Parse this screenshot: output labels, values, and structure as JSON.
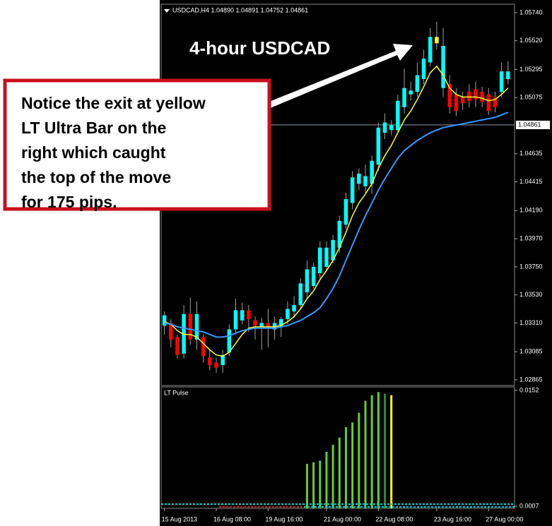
{
  "chart_data": {
    "type": "candlestick",
    "header": "USDCAD,H4  1.04890 1.04891 1.04752 1.04861",
    "annotation_title": "4-hour USDCAD",
    "annotation_box": [
      "Notice the exit at yellow",
      "LT Ultra Bar on the",
      "right which caught",
      "the top of the move",
      "for 175 pips."
    ],
    "open": [
      1.0329,
      1.0331,
      1.032,
      1.0307,
      1.0338,
      1.0318,
      1.032,
      1.0304,
      1.03,
      1.0298,
      1.0308,
      1.0326,
      1.0333,
      1.0341,
      1.0333,
      1.0328,
      1.0331,
      1.0326,
      1.0328,
      1.0334,
      1.034,
      1.0345,
      1.0355,
      1.036,
      1.037,
      1.0375,
      1.038,
      1.039,
      1.0408,
      1.0425,
      1.044,
      1.0438,
      1.044,
      1.0455,
      1.048,
      1.0482,
      1.0482,
      1.05,
      1.051,
      1.0512,
      1.0522,
      1.0535,
      1.0555,
      1.0548,
      1.0518,
      1.051,
      1.0508,
      1.0512,
      1.0514,
      1.0512,
      1.051,
      1.0508,
      1.0512,
      1.0522
    ],
    "high": [
      1.034,
      1.0334,
      1.0322,
      1.0345,
      1.0351,
      1.0348,
      1.0322,
      1.031,
      1.0304,
      1.031,
      1.033,
      1.035,
      1.0347,
      1.0345,
      1.0336,
      1.0335,
      1.0342,
      1.0336,
      1.0336,
      1.0348,
      1.0352,
      1.0366,
      1.038,
      1.0378,
      1.0395,
      1.0395,
      1.04,
      1.0415,
      1.0433,
      1.045,
      1.0452,
      1.0455,
      1.0462,
      1.0488,
      1.0495,
      1.049,
      1.051,
      1.053,
      1.052,
      1.0535,
      1.0545,
      1.0562,
      1.0567,
      1.0562,
      1.0525,
      1.0515,
      1.0512,
      1.0518,
      1.052,
      1.0516,
      1.0515,
      1.0512,
      1.0535,
      1.0536
    ],
    "low": [
      1.0322,
      1.0312,
      1.0303,
      1.0303,
      1.0314,
      1.031,
      1.03,
      1.0294,
      1.0292,
      1.0292,
      1.0305,
      1.0322,
      1.033,
      1.0324,
      1.0318,
      1.031,
      1.0312,
      1.0318,
      1.032,
      1.033,
      1.0335,
      1.0342,
      1.035,
      1.0358,
      1.0365,
      1.0372,
      1.0378,
      1.0386,
      1.0405,
      1.042,
      1.0435,
      1.0433,
      1.0432,
      1.045,
      1.0475,
      1.0478,
      1.048,
      1.0495,
      1.0505,
      1.0508,
      1.0518,
      1.0532,
      1.0545,
      1.0508,
      1.0495,
      1.0493,
      1.0498,
      1.05,
      1.05,
      1.05,
      1.0494,
      1.0496,
      1.0508,
      1.0518
    ],
    "close": [
      1.0337,
      1.0318,
      1.0306,
      1.0338,
      1.0318,
      1.0338,
      1.0305,
      1.0298,
      1.0296,
      1.0306,
      1.0326,
      1.0341,
      1.0341,
      1.0334,
      1.0329,
      1.0331,
      1.0327,
      1.0331,
      1.0334,
      1.0342,
      1.0345,
      1.0362,
      1.0373,
      1.0375,
      1.039,
      1.039,
      1.0396,
      1.0411,
      1.0428,
      1.0445,
      1.0448,
      1.0446,
      1.0458,
      1.0484,
      1.0488,
      1.0486,
      1.0505,
      1.0515,
      1.0513,
      1.0525,
      1.0538,
      1.0555,
      1.055,
      1.0515,
      1.05,
      1.0497,
      1.0503,
      1.0505,
      1.0506,
      1.0504,
      1.0497,
      1.05,
      1.0528,
      1.0528
    ],
    "candle_colors": [
      "#00ffff",
      "#ff0000",
      "#ff0000",
      "#00ffff",
      "#ff0000",
      "#00ffff",
      "#ff0000",
      "#ff0000",
      "#ff0000",
      "#00ffff",
      "#00ffff",
      "#00ffff",
      "#00ffff",
      "#ff0000",
      "#ff0000",
      "#00ffff",
      "#ff0000",
      "#00ffff",
      "#00ffff",
      "#00ffff",
      "#00ffff",
      "#00ffff",
      "#00ffff",
      "#00ffff",
      "#00ffff",
      "#00ffff",
      "#00ffff",
      "#00ffff",
      "#00ffff",
      "#00ffff",
      "#00ffff",
      "#00ffff",
      "#00ffff",
      "#00ffff",
      "#00ffff",
      "#00ffff",
      "#00ffff",
      "#00ffff",
      "#00ffff",
      "#00ffff",
      "#00ffff",
      "#00ffff",
      "#ffff00",
      "#00ffff",
      "#ff0000",
      "#ff0000",
      "#ff0000",
      "#ff0000",
      "#ff0000",
      "#ff0000",
      "#ff0000",
      "#ff0000",
      "#00ffff",
      "#00ffff"
    ],
    "series": [
      {
        "color": "#ffff33",
        "values": [
          1.0332,
          1.033,
          1.0325,
          1.0322,
          1.0322,
          1.032,
          1.0315,
          1.031,
          1.0306,
          1.0305,
          1.0308,
          1.0315,
          1.0322,
          1.0327,
          1.0328,
          1.0328,
          1.0328,
          1.0328,
          1.0329,
          1.0332,
          1.0336,
          1.0342,
          1.035,
          1.0356,
          1.0365,
          1.0372,
          1.038,
          1.039,
          1.0402,
          1.0415,
          1.0425,
          1.0432,
          1.044,
          1.0452,
          1.0462,
          1.047,
          1.048,
          1.049,
          1.0497,
          1.0506,
          1.0516,
          1.0527,
          1.0532,
          1.0525,
          1.0515,
          1.051,
          1.0508,
          1.0508,
          1.0508,
          1.0507,
          1.0505,
          1.0506,
          1.051,
          1.0515
        ]
      },
      {
        "color": "#3399ff",
        "values": [
          1.0331,
          1.033,
          1.0328,
          1.0327,
          1.0326,
          1.0325,
          1.0324,
          1.0322,
          1.032,
          1.032,
          1.0321,
          1.0323,
          1.0325,
          1.0326,
          1.0327,
          1.0327,
          1.0327,
          1.0327,
          1.0328,
          1.0329,
          1.0331,
          1.0333,
          1.0336,
          1.0339,
          1.0343,
          1.035,
          1.0358,
          1.0368,
          1.038,
          1.0392,
          1.0404,
          1.0415,
          1.0425,
          1.0435,
          1.0444,
          1.0452,
          1.046,
          1.0466,
          1.047,
          1.0474,
          1.0477,
          1.048,
          1.0482,
          1.0484,
          1.0485,
          1.0486,
          1.0487,
          1.0488,
          1.0489,
          1.049,
          1.0491,
          1.0492,
          1.0494,
          1.0496
        ]
      }
    ],
    "last_price": 1.04861,
    "xlim": [
      -0.5,
      54
    ],
    "xticks": [
      {
        "value": 0,
        "label": "15 Aug 2013"
      },
      {
        "value": 8,
        "label": "16 Aug 08:00"
      },
      {
        "value": 16,
        "label": "19 Aug 16:00"
      },
      {
        "value": 25,
        "label": "21 Aug 00:00"
      },
      {
        "value": 33,
        "label": "22 Aug 08:00"
      },
      {
        "value": 42,
        "label": "23 Aug 16:00"
      },
      {
        "value": 50,
        "label": "27 Aug 00:00"
      }
    ],
    "ylim": [
      1.02826,
      1.05795
    ],
    "yticks": [
      {
        "value": 1.0574,
        "label": "1.05740"
      },
      {
        "value": 1.0552,
        "label": "1.05520"
      },
      1.05295,
      1.05075,
      1.04635,
      1.04415,
      {
        "value": 1.0419,
        "label": "1.04190"
      },
      {
        "value": 1.0397,
        "label": "1.03970"
      },
      {
        "value": 1.0375,
        "label": "1.03750"
      },
      {
        "value": 1.0353,
        "label": "1.03530"
      },
      {
        "value": 1.0331,
        "label": "1.03310"
      },
      1.03085,
      1.02865
    ],
    "pulse_title": "LT Pulse",
    "pulse_values": [
      null,
      null,
      null,
      null,
      null,
      null,
      null,
      null,
      null,
      null,
      null,
      null,
      null,
      null,
      null,
      null,
      null,
      null,
      null,
      null,
      null,
      null,
      0.006,
      0.0062,
      0.0064,
      0.0075,
      0.0084,
      0.0093,
      0.0106,
      0.0112,
      0.0124,
      0.0139,
      0.0146,
      0.015,
      0.0148,
      0.0146,
      null,
      null,
      null,
      null,
      null,
      null,
      null,
      null,
      null,
      null,
      null,
      null,
      null,
      null,
      null,
      null,
      null,
      null
    ],
    "pulse_colors": [
      null,
      null,
      null,
      null,
      null,
      null,
      null,
      null,
      null,
      null,
      null,
      null,
      null,
      null,
      null,
      null,
      null,
      null,
      null,
      null,
      null,
      null,
      "#66cc33",
      "#66cc33",
      "#66cc33",
      "#66cc33",
      "#66cc33",
      "#66cc33",
      "#66cc33",
      "#66cc33",
      "#66cc33",
      "#66cc33",
      "#66cc33",
      "#66cc33",
      "#2e8b22",
      "#ffff00",
      null,
      null,
      null,
      null,
      null,
      null,
      null,
      null,
      null,
      null,
      null,
      null,
      null,
      null,
      null,
      null,
      null,
      null
    ],
    "pulse_ylim": [
      0.00043,
      0.01564
    ],
    "pulse_yticks": [
      0.0152,
      0.0007
    ]
  }
}
